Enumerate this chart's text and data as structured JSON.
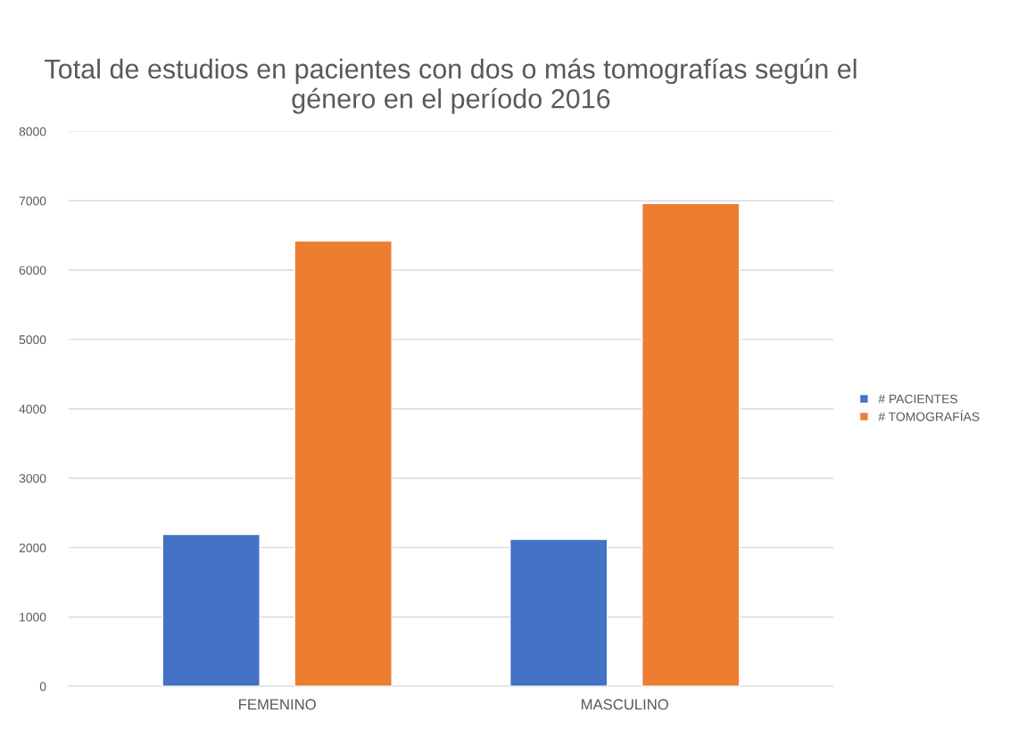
{
  "chart_data": {
    "type": "bar",
    "title": "Total de estudios en pacientes con dos o más tomografías según el género en el período 2016",
    "categories": [
      "FEMENINO",
      "MASCULINO"
    ],
    "series": [
      {
        "name": "# PACIENTES",
        "color": "#4472c4",
        "values": [
          2190,
          2120
        ]
      },
      {
        "name": "# TOMOGRAFÍAS",
        "color": "#ed7d31",
        "values": [
          6420,
          6960
        ]
      }
    ],
    "ylim": [
      0,
      8000
    ],
    "yticks": [
      0,
      1000,
      2000,
      3000,
      4000,
      5000,
      6000,
      7000,
      8000
    ],
    "grid": "y",
    "legend": "right"
  }
}
